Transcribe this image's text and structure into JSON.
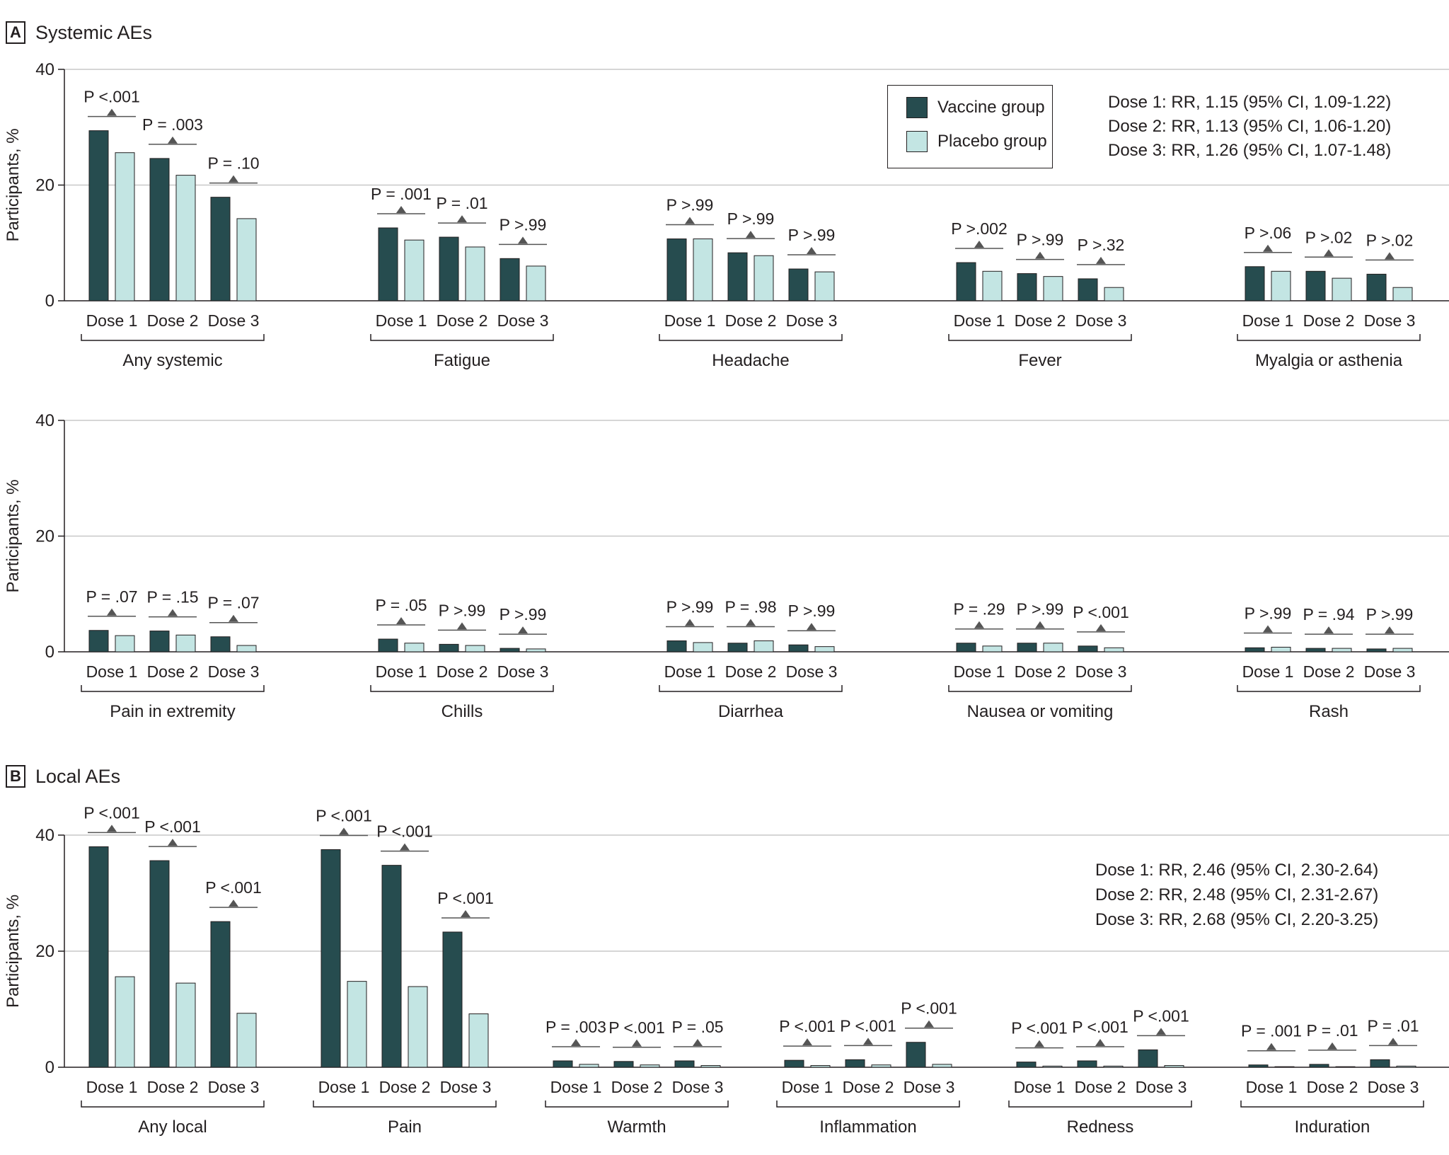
{
  "colors": {
    "vaccine": "#264c4f",
    "placebo": "#c3e5e3",
    "grid": "#c8c8c8",
    "axis": "#231f20"
  },
  "panel_a": {
    "letter": "A",
    "title": "Systemic AEs"
  },
  "panel_b": {
    "letter": "B",
    "title": "Local AEs"
  },
  "legend": {
    "vaccine_label": "Vaccine group",
    "placebo_label": "Placebo group"
  },
  "rr_a": [
    "Dose 1: RR, 1.15 (95% CI, 1.09-1.22)",
    "Dose 2: RR, 1.13 (95% CI, 1.06-1.20)",
    "Dose 3: RR, 1.26 (95% CI, 1.07-1.48)"
  ],
  "rr_b": [
    "Dose 1: RR, 2.46 (95% CI, 2.30-2.64)",
    "Dose 2: RR, 2.48 (95% CI, 2.31-2.67)",
    "Dose 3: RR, 2.68 (95% CI, 2.20-3.25)"
  ],
  "chart_data": [
    {
      "type": "bar",
      "panel": "A",
      "ylabel": "Participants, %",
      "ylim": [
        0,
        40
      ],
      "yticks": [
        0,
        20,
        40
      ],
      "series_names": [
        "Vaccine group",
        "Placebo group"
      ],
      "groups": [
        {
          "name": "Any systemic",
          "doses": [
            {
              "label": "Dose 1",
              "vaccine": 29.4,
              "placebo": 25.6,
              "p": "P <.001"
            },
            {
              "label": "Dose 2",
              "vaccine": 24.6,
              "placebo": 21.7,
              "p": "P = .003"
            },
            {
              "label": "Dose 3",
              "vaccine": 17.9,
              "placebo": 14.2,
              "p": "P = .10"
            }
          ]
        },
        {
          "name": "Fatigue",
          "doses": [
            {
              "label": "Dose 1",
              "vaccine": 12.6,
              "placebo": 10.5,
              "p": "P = .001"
            },
            {
              "label": "Dose 2",
              "vaccine": 11.0,
              "placebo": 9.3,
              "p": "P = .01"
            },
            {
              "label": "Dose 3",
              "vaccine": 7.3,
              "placebo": 6.0,
              "p": "P >.99"
            }
          ]
        },
        {
          "name": "Headache",
          "doses": [
            {
              "label": "Dose 1",
              "vaccine": 10.7,
              "placebo": 10.7,
              "p": "P >.99"
            },
            {
              "label": "Dose 2",
              "vaccine": 8.3,
              "placebo": 7.8,
              "p": "P >.99"
            },
            {
              "label": "Dose 3",
              "vaccine": 5.5,
              "placebo": 5.0,
              "p": "P >.99"
            }
          ]
        },
        {
          "name": "Fever",
          "doses": [
            {
              "label": "Dose 1",
              "vaccine": 6.6,
              "placebo": 5.1,
              "p": "P >.002"
            },
            {
              "label": "Dose 2",
              "vaccine": 4.7,
              "placebo": 4.2,
              "p": "P >.99"
            },
            {
              "label": "Dose 3",
              "vaccine": 3.8,
              "placebo": 2.3,
              "p": "P >.32"
            }
          ]
        },
        {
          "name": "Myalgia or asthenia",
          "doses": [
            {
              "label": "Dose 1",
              "vaccine": 5.9,
              "placebo": 5.1,
              "p": "P >.06"
            },
            {
              "label": "Dose 2",
              "vaccine": 5.1,
              "placebo": 3.9,
              "p": "P >.02"
            },
            {
              "label": "Dose 3",
              "vaccine": 4.6,
              "placebo": 2.3,
              "p": "P >.02"
            }
          ]
        }
      ]
    },
    {
      "type": "bar",
      "panel": "A",
      "ylabel": "Participants, %",
      "ylim": [
        0,
        40
      ],
      "yticks": [
        0,
        20,
        40
      ],
      "series_names": [
        "Vaccine group",
        "Placebo group"
      ],
      "groups": [
        {
          "name": "Pain in extremity",
          "doses": [
            {
              "label": "Dose 1",
              "vaccine": 3.7,
              "placebo": 2.8,
              "p": "P = .07"
            },
            {
              "label": "Dose 2",
              "vaccine": 3.6,
              "placebo": 2.9,
              "p": "P = .15"
            },
            {
              "label": "Dose 3",
              "vaccine": 2.6,
              "placebo": 1.1,
              "p": "P = .07"
            }
          ]
        },
        {
          "name": "Chills",
          "doses": [
            {
              "label": "Dose 1",
              "vaccine": 2.2,
              "placebo": 1.5,
              "p": "P = .05"
            },
            {
              "label": "Dose 2",
              "vaccine": 1.3,
              "placebo": 1.1,
              "p": "P >.99"
            },
            {
              "label": "Dose 3",
              "vaccine": 0.6,
              "placebo": 0.5,
              "p": "P >.99"
            }
          ]
        },
        {
          "name": "Diarrhea",
          "doses": [
            {
              "label": "Dose 1",
              "vaccine": 1.9,
              "placebo": 1.6,
              "p": "P >.99"
            },
            {
              "label": "Dose 2",
              "vaccine": 1.5,
              "placebo": 1.9,
              "p": "P = .98"
            },
            {
              "label": "Dose 3",
              "vaccine": 1.2,
              "placebo": 0.9,
              "p": "P >.99"
            }
          ]
        },
        {
          "name": "Nausea or vomiting",
          "doses": [
            {
              "label": "Dose 1",
              "vaccine": 1.5,
              "placebo": 1.0,
              "p": "P = .29"
            },
            {
              "label": "Dose 2",
              "vaccine": 1.5,
              "placebo": 1.5,
              "p": "P >.99"
            },
            {
              "label": "Dose 3",
              "vaccine": 1.0,
              "placebo": 0.7,
              "p": "P <.001"
            }
          ]
        },
        {
          "name": "Rash",
          "doses": [
            {
              "label": "Dose 1",
              "vaccine": 0.7,
              "placebo": 0.8,
              "p": "P >.99"
            },
            {
              "label": "Dose 2",
              "vaccine": 0.6,
              "placebo": 0.6,
              "p": "P = .94"
            },
            {
              "label": "Dose 3",
              "vaccine": 0.5,
              "placebo": 0.6,
              "p": "P >.99"
            }
          ]
        }
      ]
    },
    {
      "type": "bar",
      "panel": "B",
      "ylabel": "Participants, %",
      "ylim": [
        0,
        40
      ],
      "yticks": [
        0,
        20,
        40
      ],
      "series_names": [
        "Vaccine group",
        "Placebo group"
      ],
      "groups": [
        {
          "name": "Any local",
          "doses": [
            {
              "label": "Dose 1",
              "vaccine": 38.0,
              "placebo": 15.6,
              "p": "P <.001"
            },
            {
              "label": "Dose 2",
              "vaccine": 35.6,
              "placebo": 14.5,
              "p": "P <.001"
            },
            {
              "label": "Dose 3",
              "vaccine": 25.1,
              "placebo": 9.3,
              "p": "P <.001"
            }
          ]
        },
        {
          "name": "Pain",
          "doses": [
            {
              "label": "Dose 1",
              "vaccine": 37.5,
              "placebo": 14.8,
              "p": "P <.001"
            },
            {
              "label": "Dose 2",
              "vaccine": 34.8,
              "placebo": 13.9,
              "p": "P <.001"
            },
            {
              "label": "Dose 3",
              "vaccine": 23.3,
              "placebo": 9.2,
              "p": "P <.001"
            }
          ]
        },
        {
          "name": "Warmth",
          "doses": [
            {
              "label": "Dose 1",
              "vaccine": 1.1,
              "placebo": 0.5,
              "p": "P = .003"
            },
            {
              "label": "Dose 2",
              "vaccine": 1.0,
              "placebo": 0.4,
              "p": "P <.001"
            },
            {
              "label": "Dose 3",
              "vaccine": 1.1,
              "placebo": 0.3,
              "p": "P = .05"
            }
          ]
        },
        {
          "name": "Inflammation",
          "doses": [
            {
              "label": "Dose 1",
              "vaccine": 1.2,
              "placebo": 0.3,
              "p": "P <.001"
            },
            {
              "label": "Dose 2",
              "vaccine": 1.3,
              "placebo": 0.4,
              "p": "P <.001"
            },
            {
              "label": "Dose 3",
              "vaccine": 4.3,
              "placebo": 0.5,
              "p": "P <.001"
            }
          ]
        },
        {
          "name": "Redness",
          "doses": [
            {
              "label": "Dose 1",
              "vaccine": 0.9,
              "placebo": 0.2,
              "p": "P <.001"
            },
            {
              "label": "Dose 2",
              "vaccine": 1.1,
              "placebo": 0.2,
              "p": "P <.001"
            },
            {
              "label": "Dose 3",
              "vaccine": 3.0,
              "placebo": 0.3,
              "p": "P <.001"
            }
          ]
        },
        {
          "name": "Induration",
          "doses": [
            {
              "label": "Dose 1",
              "vaccine": 0.4,
              "placebo": 0.1,
              "p": "P = .001"
            },
            {
              "label": "Dose 2",
              "vaccine": 0.5,
              "placebo": 0.1,
              "p": "P = .01"
            },
            {
              "label": "Dose 3",
              "vaccine": 1.3,
              "placebo": 0.2,
              "p": "P = .01"
            }
          ]
        }
      ]
    }
  ]
}
